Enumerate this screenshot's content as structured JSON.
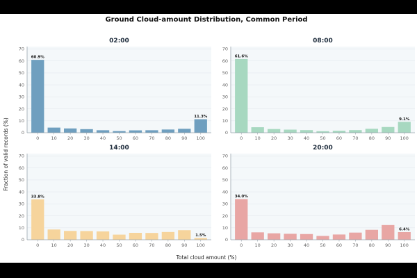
{
  "chart_data": {
    "type": "bar",
    "title": "Ground Cloud-amount Distribution, Common Period",
    "xlabel": "Total cloud amount (%)",
    "ylabel": "Fraction of valid records (%)",
    "ylim": [
      0,
      72
    ],
    "yticks": [
      0,
      10,
      20,
      30,
      40,
      50,
      60,
      70
    ],
    "categories": [
      "0",
      "10",
      "20",
      "30",
      "40",
      "50",
      "60",
      "70",
      "80",
      "90",
      "100"
    ],
    "grid": true,
    "panels": [
      {
        "name": "02:00",
        "color": "#6f9fbf",
        "values": [
          60.9,
          4.3,
          3.6,
          3.0,
          2.1,
          1.4,
          2.0,
          2.1,
          2.7,
          3.3,
          11.3
        ],
        "labels": [
          {
            "index": 0,
            "text": "60.9%"
          },
          {
            "index": 10,
            "text": "11.3%"
          }
        ]
      },
      {
        "name": "08:00",
        "color": "#a7d8c0",
        "values": [
          61.6,
          4.6,
          3.1,
          2.6,
          2.2,
          1.3,
          1.7,
          2.2,
          3.3,
          4.8,
          9.1
        ],
        "labels": [
          {
            "index": 0,
            "text": "61.6%"
          },
          {
            "index": 10,
            "text": "9.1%"
          }
        ]
      },
      {
        "name": "14:00",
        "color": "#f6d49c",
        "values": [
          33.8,
          8.6,
          7.4,
          7.3,
          7.0,
          4.3,
          5.8,
          5.7,
          6.5,
          8.0,
          1.5
        ],
        "labels": [
          {
            "index": 0,
            "text": "33.8%"
          },
          {
            "index": 10,
            "text": "1.5%"
          }
        ]
      },
      {
        "name": "20:00",
        "color": "#e8a6a4",
        "values": [
          34.0,
          6.2,
          5.4,
          5.0,
          4.8,
          3.2,
          4.4,
          6.0,
          8.3,
          12.3,
          6.4
        ],
        "labels": [
          {
            "index": 0,
            "text": "34.0%"
          },
          {
            "index": 10,
            "text": "6.4%"
          }
        ]
      }
    ]
  }
}
